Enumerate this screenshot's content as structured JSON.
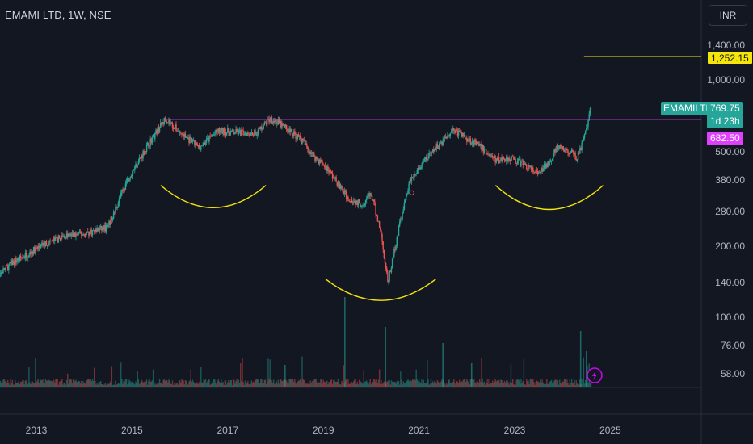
{
  "header": {
    "symbol_title": "EMAMI LTD, 1W, NSE",
    "currency_button": "INR"
  },
  "price_labels": {
    "ticker": "EMAMILTD",
    "last_price": "769.75",
    "countdown": "1d 23h",
    "resistance": "682.50",
    "target": "1,252.15"
  },
  "colors": {
    "background": "#131722",
    "up": "#26a69a",
    "down": "#ef5350",
    "resistance_line": "#e040fb",
    "target_line": "#f5e50a",
    "pattern_arcs": "#f5e50a",
    "axis_text": "#b2b5be"
  },
  "icons": [
    "lightning-icon"
  ],
  "chart_data": {
    "type": "candlestick",
    "title": "EMAMI LTD, 1W, NSE",
    "y_scale": "log",
    "y_ticks": [
      "1,400.00",
      "1,000.00",
      "500.00",
      "380.00",
      "280.00",
      "200.00",
      "140.00",
      "100.00",
      "76.00",
      "58.00"
    ],
    "x_ticks": [
      "2013",
      "2015",
      "2017",
      "2019",
      "2021",
      "2023",
      "2025"
    ],
    "ylim": [
      52,
      1650
    ],
    "series_path": [
      [
        2012.0,
        140
      ],
      [
        2012.5,
        170
      ],
      [
        2013.2,
        205
      ],
      [
        2013.6,
        220
      ],
      [
        2014.0,
        225
      ],
      [
        2014.5,
        240
      ],
      [
        2014.9,
        380
      ],
      [
        2015.4,
        560
      ],
      [
        2015.7,
        690
      ],
      [
        2016.0,
        600
      ],
      [
        2016.4,
        520
      ],
      [
        2016.8,
        610
      ],
      [
        2017.2,
        600
      ],
      [
        2017.6,
        600
      ],
      [
        2017.9,
        690
      ],
      [
        2018.2,
        630
      ],
      [
        2018.5,
        570
      ],
      [
        2018.8,
        480
      ],
      [
        2019.1,
        420
      ],
      [
        2019.5,
        320
      ],
      [
        2019.8,
        300
      ],
      [
        2020.0,
        330
      ],
      [
        2020.2,
        230
      ],
      [
        2020.35,
        140
      ],
      [
        2020.6,
        250
      ],
      [
        2020.8,
        370
      ],
      [
        2021.1,
        450
      ],
      [
        2021.4,
        530
      ],
      [
        2021.7,
        620
      ],
      [
        2022.0,
        570
      ],
      [
        2022.3,
        520
      ],
      [
        2022.6,
        460
      ],
      [
        2022.9,
        470
      ],
      [
        2023.2,
        440
      ],
      [
        2023.5,
        400
      ],
      [
        2023.7,
        450
      ],
      [
        2023.9,
        520
      ],
      [
        2024.2,
        490
      ],
      [
        2024.3,
        470
      ],
      [
        2024.45,
        560
      ],
      [
        2024.6,
        770
      ]
    ],
    "annotations": {
      "resistance_level": 682.5,
      "target_level": 1252.15,
      "last_price": 769.75,
      "pattern": "inverse head and shoulders (three arcs)"
    }
  }
}
